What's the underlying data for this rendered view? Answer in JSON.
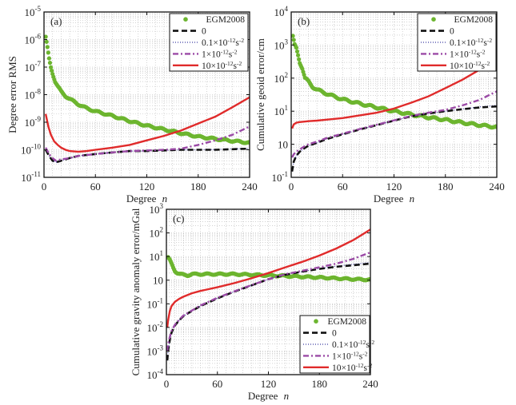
{
  "chart_data": [
    {
      "id": "a",
      "type": "line",
      "panel_label": "(a)",
      "title": "",
      "xlabel": "Degree",
      "xlabel_italic": "n",
      "ylabel": "Degree error RMS",
      "yscale": "log",
      "xlim": [
        0,
        240
      ],
      "ylim_exp": [
        -11,
        -5
      ],
      "xticks": [
        "0",
        "60",
        "120",
        "180",
        "240"
      ],
      "yticks": [
        {
          "base": "10",
          "exp": "-11"
        },
        {
          "base": "10",
          "exp": "-10"
        },
        {
          "base": "10",
          "exp": "-9"
        },
        {
          "base": "10",
          "exp": "-8"
        },
        {
          "base": "10",
          "exp": "-7"
        },
        {
          "base": "10",
          "exp": "-6"
        },
        {
          "base": "10",
          "exp": "-5"
        }
      ],
      "grid": true,
      "legend_position": "top-right",
      "series": [
        {
          "name": "EGM2008",
          "style": "markers",
          "x": [
            2,
            4,
            6,
            8,
            10,
            13,
            16,
            20,
            25,
            30,
            40,
            50,
            60,
            80,
            100,
            120,
            140,
            160,
            180,
            200,
            220,
            240
          ],
          "y": [
            1.2e-06,
            5e-07,
            2e-07,
            1e-07,
            6e-08,
            3e-08,
            2e-08,
            1.3e-08,
            9e-09,
            7e-09,
            4.5e-09,
            3.2e-09,
            2.5e-09,
            1.7e-09,
            1.1e-09,
            7.5e-10,
            5.5e-10,
            4e-10,
            3e-10,
            2.5e-10,
            2.1e-10,
            1.8e-10
          ]
        },
        {
          "name": "0",
          "style": "dashed",
          "x": [
            2,
            6,
            10,
            14,
            20,
            30,
            40,
            60,
            80,
            100,
            120,
            140,
            160,
            180,
            200,
            220,
            240
          ],
          "y": [
            1e-10,
            6e-11,
            4e-11,
            3.5e-11,
            4e-11,
            5e-11,
            6e-11,
            7e-11,
            8e-11,
            9e-11,
            9e-11,
            9.5e-11,
            1e-10,
            1e-10,
            1e-10,
            1.05e-10,
            1.1e-10
          ]
        },
        {
          "name": "0.1×10⁻¹²s⁻²",
          "style": "dotted",
          "x": [
            2,
            6,
            10,
            14,
            20,
            30,
            40,
            60,
            80,
            100,
            120,
            140,
            160,
            180,
            200,
            220,
            240
          ],
          "y": [
            1e-10,
            6e-11,
            4e-11,
            3.5e-11,
            4e-11,
            5e-11,
            6e-11,
            7e-11,
            8e-11,
            9e-11,
            9e-11,
            9.5e-11,
            1e-10,
            1e-10,
            1.02e-10,
            1.08e-10,
            1.12e-10
          ]
        },
        {
          "name": "1×10⁻¹²s⁻²",
          "style": "dashdot",
          "x": [
            2,
            6,
            10,
            14,
            20,
            30,
            40,
            60,
            80,
            100,
            120,
            140,
            160,
            180,
            200,
            220,
            240
          ],
          "y": [
            1.2e-10,
            7e-11,
            5e-11,
            4e-11,
            4.5e-11,
            5e-11,
            6e-11,
            7e-11,
            8e-11,
            9e-11,
            9.5e-11,
            1e-10,
            1.1e-10,
            1.5e-10,
            2.2e-10,
            3.5e-10,
            7e-10
          ]
        },
        {
          "name": "10×10⁻¹²s⁻²",
          "style": "solid",
          "x": [
            2,
            5,
            8,
            12,
            16,
            20,
            25,
            30,
            40,
            50,
            60,
            80,
            100,
            120,
            140,
            160,
            180,
            200,
            220,
            240
          ],
          "y": [
            2e-09,
            7e-10,
            3.5e-10,
            2e-10,
            1.5e-10,
            1.2e-10,
            1e-10,
            9e-11,
            8.5e-11,
            9e-11,
            1e-10,
            1.2e-10,
            1.5e-10,
            2.2e-10,
            3.2e-10,
            5e-10,
            9e-10,
            1.6e-09,
            3.5e-09,
            8e-09
          ]
        }
      ]
    },
    {
      "id": "b",
      "type": "line",
      "panel_label": "(b)",
      "title": "",
      "xlabel": "Degree",
      "xlabel_italic": "n",
      "ylabel": "Cumulative geoid error/cm",
      "yscale": "log",
      "xlim": [
        0,
        240
      ],
      "ylim_exp": [
        -1,
        4
      ],
      "xticks": [
        "0",
        "60",
        "120",
        "180",
        "240"
      ],
      "yticks": [
        {
          "base": "10",
          "exp": "-1"
        },
        {
          "base": "10",
          "exp": ""
        },
        {
          "base": "10",
          "exp": "1"
        },
        {
          "base": "10",
          "exp": "2"
        },
        {
          "base": "10",
          "exp": "3"
        },
        {
          "base": "10",
          "exp": "4"
        }
      ],
      "grid": true,
      "legend_position": "top-right",
      "series": [
        {
          "name": "EGM2008",
          "style": "markers",
          "x": [
            2,
            4,
            6,
            8,
            10,
            13,
            16,
            20,
            25,
            30,
            40,
            50,
            60,
            80,
            100,
            120,
            140,
            160,
            180,
            200,
            220,
            240
          ],
          "y": [
            1800,
            1000,
            800,
            500,
            300,
            200,
            100,
            80,
            55,
            45,
            35,
            28,
            23,
            17,
            13,
            10,
            8,
            6.5,
            5.5,
            4.5,
            3.8,
            3.3
          ]
        },
        {
          "name": "0",
          "style": "dashed",
          "x": [
            1,
            3,
            6,
            10,
            15,
            20,
            30,
            40,
            60,
            80,
            100,
            120,
            140,
            160,
            180,
            200,
            220,
            240
          ],
          "y": [
            0.15,
            0.3,
            0.45,
            0.6,
            0.75,
            0.9,
            1.1,
            1.4,
            2,
            2.8,
            3.8,
            5.2,
            7,
            8.5,
            10,
            11.5,
            13,
            14
          ]
        },
        {
          "name": "0.1×10⁻¹²s⁻²",
          "style": "dotted",
          "x": [
            1,
            3,
            6,
            10,
            15,
            20,
            30,
            40,
            60,
            80,
            100,
            120,
            140,
            160,
            180,
            200,
            220,
            240
          ],
          "y": [
            0.15,
            0.3,
            0.45,
            0.6,
            0.75,
            0.9,
            1.1,
            1.4,
            2,
            2.8,
            3.8,
            5.2,
            7,
            8.5,
            10,
            11.7,
            13.5,
            15
          ]
        },
        {
          "name": "1×10⁻¹²s⁻²",
          "style": "dashdot",
          "x": [
            1,
            3,
            6,
            10,
            15,
            20,
            30,
            40,
            60,
            80,
            100,
            120,
            140,
            160,
            180,
            200,
            220,
            240
          ],
          "y": [
            0.4,
            0.5,
            0.6,
            0.7,
            0.85,
            1,
            1.2,
            1.5,
            2.1,
            2.9,
            3.9,
            5.3,
            7.2,
            9,
            11,
            15,
            22,
            40
          ]
        },
        {
          "name": "10×10⁻¹²s⁻²",
          "style": "solid",
          "x": [
            1,
            3,
            6,
            10,
            20,
            30,
            40,
            60,
            80,
            100,
            120,
            140,
            160,
            180,
            200,
            220,
            240
          ],
          "y": [
            3,
            4,
            4.5,
            4.7,
            5,
            5.2,
            5.5,
            6.2,
            7.5,
            9,
            12,
            18,
            28,
            50,
            90,
            180,
            400
          ]
        }
      ]
    },
    {
      "id": "c",
      "type": "line",
      "panel_label": "(c)",
      "title": "",
      "xlabel": "Degree",
      "xlabel_italic": "n",
      "ylabel": "Cumulative gravity anomaly error/mGal",
      "yscale": "log",
      "xlim": [
        0,
        240
      ],
      "ylim_exp": [
        -4,
        3
      ],
      "xticks": [
        "0",
        "60",
        "120",
        "180",
        "240"
      ],
      "yticks": [
        {
          "base": "10",
          "exp": "-4"
        },
        {
          "base": "10",
          "exp": "-3"
        },
        {
          "base": "10",
          "exp": "-2"
        },
        {
          "base": "10",
          "exp": "-1"
        },
        {
          "base": "10",
          "exp": ""
        },
        {
          "base": "10",
          "exp": "1"
        },
        {
          "base": "10",
          "exp": "2"
        },
        {
          "base": "10",
          "exp": "3"
        }
      ],
      "grid": true,
      "legend_position": "bottom-right",
      "series": [
        {
          "name": "EGM2008",
          "style": "markers",
          "x": [
            2,
            4,
            6,
            8,
            10,
            13,
            16,
            20,
            25,
            30,
            40,
            50,
            60,
            80,
            100,
            120,
            140,
            160,
            180,
            200,
            220,
            240
          ],
          "y": [
            9,
            7,
            5,
            3.5,
            2.5,
            2,
            1.8,
            1.7,
            1.6,
            1.8,
            1.8,
            1.8,
            1.8,
            1.8,
            1.7,
            1.6,
            1.5,
            1.4,
            1.3,
            1.2,
            1.1,
            1.05
          ]
        },
        {
          "name": "0",
          "style": "dashed",
          "x": [
            1,
            2,
            4,
            6,
            10,
            15,
            20,
            30,
            40,
            60,
            80,
            100,
            120,
            140,
            160,
            180,
            200,
            220,
            240
          ],
          "y": [
            0.0004,
            0.001,
            0.003,
            0.006,
            0.012,
            0.02,
            0.03,
            0.05,
            0.08,
            0.17,
            0.33,
            0.6,
            1.1,
            1.7,
            2.3,
            3,
            3.7,
            4.3,
            5
          ]
        },
        {
          "name": "0.1×10⁻¹²s⁻²",
          "style": "dotted",
          "x": [
            1,
            2,
            4,
            6,
            10,
            15,
            20,
            30,
            40,
            60,
            80,
            100,
            120,
            140,
            160,
            180,
            200,
            220,
            240
          ],
          "y": [
            0.0004,
            0.001,
            0.003,
            0.006,
            0.012,
            0.02,
            0.03,
            0.05,
            0.08,
            0.17,
            0.33,
            0.6,
            1.1,
            1.7,
            2.3,
            3.1,
            3.9,
            4.7,
            5.6
          ]
        },
        {
          "name": "1×10⁻¹²s⁻²",
          "style": "dashdot",
          "x": [
            1,
            2,
            4,
            6,
            10,
            15,
            20,
            30,
            40,
            60,
            80,
            100,
            120,
            140,
            160,
            180,
            200,
            220,
            240
          ],
          "y": [
            0.001,
            0.002,
            0.004,
            0.007,
            0.013,
            0.021,
            0.032,
            0.052,
            0.085,
            0.18,
            0.34,
            0.62,
            1.1,
            1.8,
            2.5,
            3.5,
            5,
            8,
            15
          ]
        },
        {
          "name": "10×10⁻¹²s⁻²",
          "style": "solid",
          "x": [
            1,
            2,
            4,
            6,
            10,
            15,
            20,
            30,
            40,
            60,
            80,
            100,
            120,
            140,
            160,
            180,
            200,
            220,
            240
          ],
          "y": [
            0.01,
            0.02,
            0.05,
            0.08,
            0.12,
            0.16,
            0.2,
            0.28,
            0.35,
            0.5,
            0.75,
            1.2,
            2,
            3.5,
            6,
            11,
            22,
            50,
            140
          ]
        }
      ]
    }
  ],
  "legend_labels": {
    "egm": "EGM2008",
    "zero": "0",
    "s01": {
      "coef": "0.1×10",
      "exp1": "-12",
      "unit": "s",
      "exp2": "-2"
    },
    "s1": {
      "coef": "1×10",
      "exp1": "-12",
      "unit": "s",
      "exp2": "-2"
    },
    "s10": {
      "coef": "10×10",
      "exp1": "-12",
      "unit": "s",
      "exp2": "-2"
    }
  },
  "colors": {
    "egm": "#6cb52f",
    "zero": "#111111",
    "s01": "#3a3aa0",
    "s1": "#9b4aa6",
    "s10": "#e02b2b",
    "grid": "#b8b8b8",
    "axis": "#111111"
  }
}
